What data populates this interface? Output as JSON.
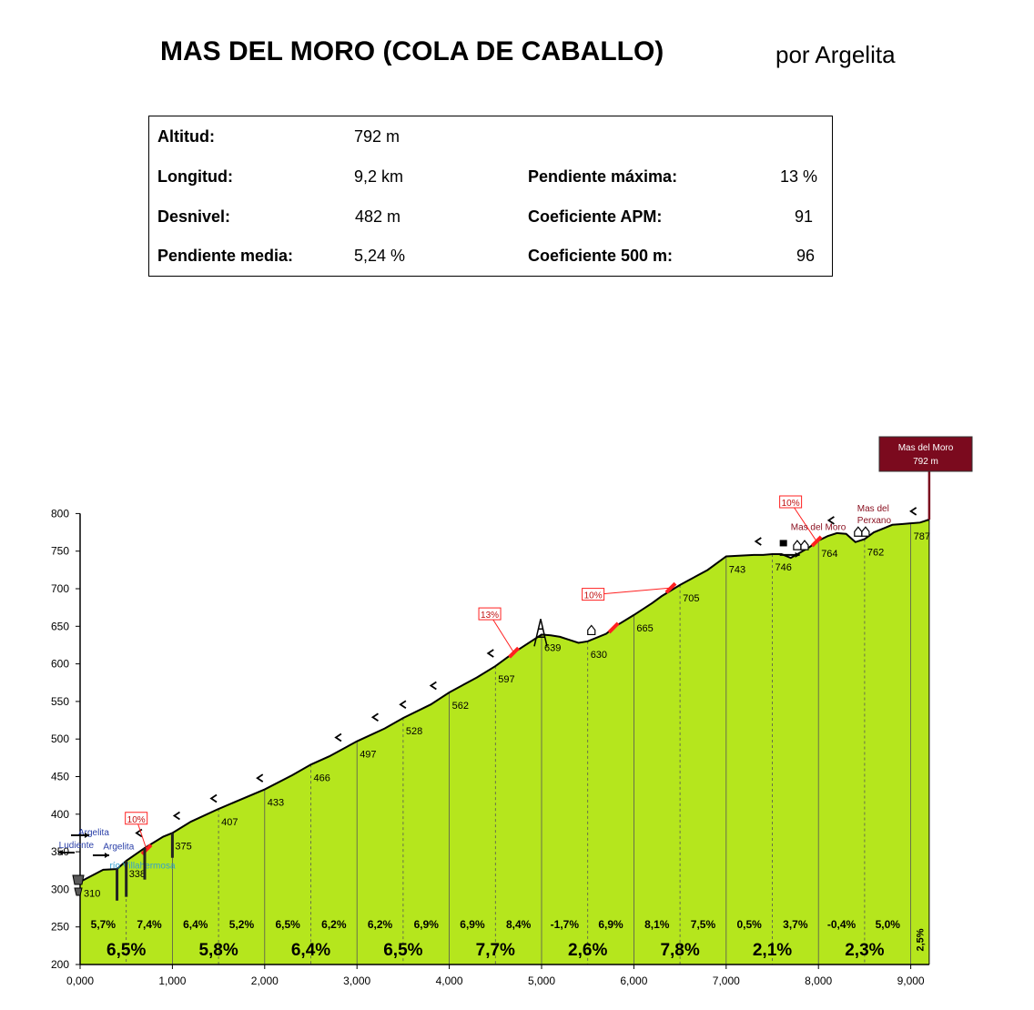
{
  "title": "MAS DEL MORO (COLA DE CABALLO)",
  "author": "por Argelita",
  "stats": {
    "altitud_label": "Altitud:",
    "altitud": "792 m",
    "longitud_label": "Longitud:",
    "longitud": "9,2 km",
    "desnivel_label": "Desnivel:",
    "desnivel": "482 m",
    "pendiente_media_label": "Pendiente media:",
    "pendiente_media": "5,24 %",
    "pendiente_maxima_label": "Pendiente máxima:",
    "pendiente_maxima": "13 %",
    "coef_apm_label": "Coeficiente APM:",
    "coef_apm": "91",
    "coef_500_label": "Coeficiente 500 m:",
    "coef_500": "96"
  },
  "chart_data": {
    "type": "area",
    "fill_color": "#b5e61d",
    "summit_color": "#7b0a1e",
    "ramp_color": "#ff2020",
    "xlim": [
      0,
      9.2
    ],
    "ylim": [
      200,
      800
    ],
    "x_ticks": [
      "0,000",
      "1,000",
      "2,000",
      "3,000",
      "4,000",
      "5,000",
      "6,000",
      "7,000",
      "8,000",
      "9,000"
    ],
    "y_ticks": [
      200,
      250,
      300,
      350,
      400,
      450,
      500,
      550,
      600,
      650,
      700,
      750,
      800
    ],
    "profile": {
      "x": [
        0,
        0.25,
        0.4,
        0.5,
        0.7,
        0.9,
        1.0,
        1.2,
        1.5,
        2.0,
        2.3,
        2.5,
        2.7,
        3.0,
        3.3,
        3.5,
        3.8,
        4.0,
        4.3,
        4.5,
        4.7,
        5.0,
        5.1,
        5.2,
        5.3,
        5.4,
        5.5,
        5.7,
        5.8,
        6.0,
        6.2,
        6.3,
        6.5,
        6.8,
        7.0,
        7.3,
        7.4,
        7.5,
        7.6,
        7.7,
        7.8,
        7.9,
        8.0,
        8.1,
        8.2,
        8.3,
        8.4,
        8.5,
        8.6,
        8.7,
        8.8,
        8.9,
        9.0,
        9.1,
        9.2
      ],
      "y": [
        310,
        326,
        327,
        338,
        355,
        370,
        375,
        390,
        407,
        433,
        452,
        466,
        477,
        497,
        514,
        528,
        546,
        562,
        582,
        597,
        615,
        639,
        638,
        636,
        632,
        628,
        630,
        640,
        650,
        665,
        681,
        690,
        705,
        725,
        743,
        745,
        745,
        746,
        746,
        741,
        748,
        755,
        764,
        770,
        774,
        773,
        762,
        766,
        775,
        780,
        785,
        786,
        787,
        788,
        792
      ]
    },
    "km_markers": [
      {
        "x": 0.5,
        "alt": "338"
      },
      {
        "x": 1.0,
        "alt": "375"
      },
      {
        "x": 1.5,
        "alt": "407"
      },
      {
        "x": 2.0,
        "alt": "433"
      },
      {
        "x": 2.5,
        "alt": "466"
      },
      {
        "x": 3.0,
        "alt": "497"
      },
      {
        "x": 3.5,
        "alt": "528"
      },
      {
        "x": 4.0,
        "alt": "562"
      },
      {
        "x": 4.5,
        "alt": "597"
      },
      {
        "x": 5.0,
        "alt": "639"
      },
      {
        "x": 5.5,
        "alt": "630"
      },
      {
        "x": 6.0,
        "alt": "665"
      },
      {
        "x": 6.5,
        "alt": "705"
      },
      {
        "x": 7.0,
        "alt": "743"
      },
      {
        "x": 7.5,
        "alt": "746"
      },
      {
        "x": 8.0,
        "alt": "764"
      },
      {
        "x": 8.5,
        "alt": "762"
      },
      {
        "x": 9.0,
        "alt": "787"
      }
    ],
    "start_altitude": "310",
    "half_km_grades": [
      {
        "x": 0.25,
        "label": "5,7%"
      },
      {
        "x": 0.75,
        "label": "7,4%"
      },
      {
        "x": 1.25,
        "label": "6,4%"
      },
      {
        "x": 1.75,
        "label": "5,2%"
      },
      {
        "x": 2.25,
        "label": "6,5%"
      },
      {
        "x": 2.75,
        "label": "6,2%"
      },
      {
        "x": 3.25,
        "label": "6,2%"
      },
      {
        "x": 3.75,
        "label": "6,9%"
      },
      {
        "x": 4.25,
        "label": "6,9%"
      },
      {
        "x": 4.75,
        "label": "8,4%"
      },
      {
        "x": 5.25,
        "label": "-1,7%"
      },
      {
        "x": 5.75,
        "label": "6,9%"
      },
      {
        "x": 6.25,
        "label": "8,1%"
      },
      {
        "x": 6.75,
        "label": "7,5%"
      },
      {
        "x": 7.25,
        "label": "0,5%"
      },
      {
        "x": 7.75,
        "label": "3,7%"
      },
      {
        "x": 8.25,
        "label": "-0,4%"
      },
      {
        "x": 8.75,
        "label": "5,0%"
      }
    ],
    "km_grades": [
      {
        "x": 0.5,
        "label": "6,5%"
      },
      {
        "x": 1.5,
        "label": "5,8%"
      },
      {
        "x": 2.5,
        "label": "6,4%"
      },
      {
        "x": 3.5,
        "label": "6,5%"
      },
      {
        "x": 4.5,
        "label": "7,7%"
      },
      {
        "x": 5.5,
        "label": "2,6%"
      },
      {
        "x": 6.5,
        "label": "7,8%"
      },
      {
        "x": 7.5,
        "label": "2,1%"
      },
      {
        "x": 8.5,
        "label": "2,3%"
      }
    ],
    "last_segment_grade": {
      "x": 9.1,
      "label": "2,5%"
    },
    "ramps": [
      {
        "x": 0.72,
        "y": 353,
        "label": "10%",
        "label_x": 0.49,
        "label_alt": 394
      },
      {
        "x": 4.7,
        "y": 615,
        "label": "13%",
        "label_x": 4.32,
        "label_alt": 666
      },
      {
        "x": 5.78,
        "y": 648,
        "label": null
      },
      {
        "x": 6.4,
        "y": 701,
        "label": "10%",
        "label_x": 5.44,
        "label_alt": 692
      },
      {
        "x": 7.98,
        "y": 763,
        "label": "10%",
        "label_x": 7.58,
        "label_alt": 815
      }
    ],
    "curve_marks": [
      {
        "x": 0.64,
        "alt": 375
      },
      {
        "x": 1.05,
        "alt": 398
      },
      {
        "x": 1.45,
        "alt": 421
      },
      {
        "x": 1.95,
        "alt": 448
      },
      {
        "x": 2.8,
        "alt": 502
      },
      {
        "x": 3.2,
        "alt": 529
      },
      {
        "x": 3.5,
        "alt": 546
      },
      {
        "x": 3.83,
        "alt": 571
      },
      {
        "x": 4.45,
        "alt": 614
      },
      {
        "x": 7.35,
        "alt": 763
      },
      {
        "x": 8.14,
        "alt": 791
      },
      {
        "x": 9.03,
        "alt": 803
      }
    ],
    "summit_label": {
      "line1": "Mas del Moro",
      "line2": "792 m"
    },
    "annotations": [
      {
        "text": "Mas del Moro",
        "x": 7.7,
        "alt": 778,
        "color": "#8a1020"
      },
      {
        "text": "Mas del",
        "x": 8.42,
        "alt": 803,
        "color": "#8a1020"
      },
      {
        "text": "Perxano",
        "x": 8.42,
        "alt": 787,
        "color": "#8a1020"
      },
      {
        "text": "Argelita",
        "x": -0.02,
        "alt": 372,
        "color": "#2a3fa8"
      },
      {
        "text": "Argelita",
        "x": 0.25,
        "alt": 353,
        "color": "#2a3fa8"
      },
      {
        "text": "Ludiente",
        "x": -0.23,
        "alt": 355,
        "color": "#2a3fa8"
      },
      {
        "text": "río Villahermosa",
        "x": 0.32,
        "alt": 328,
        "color": "#2f9fd0"
      }
    ]
  }
}
